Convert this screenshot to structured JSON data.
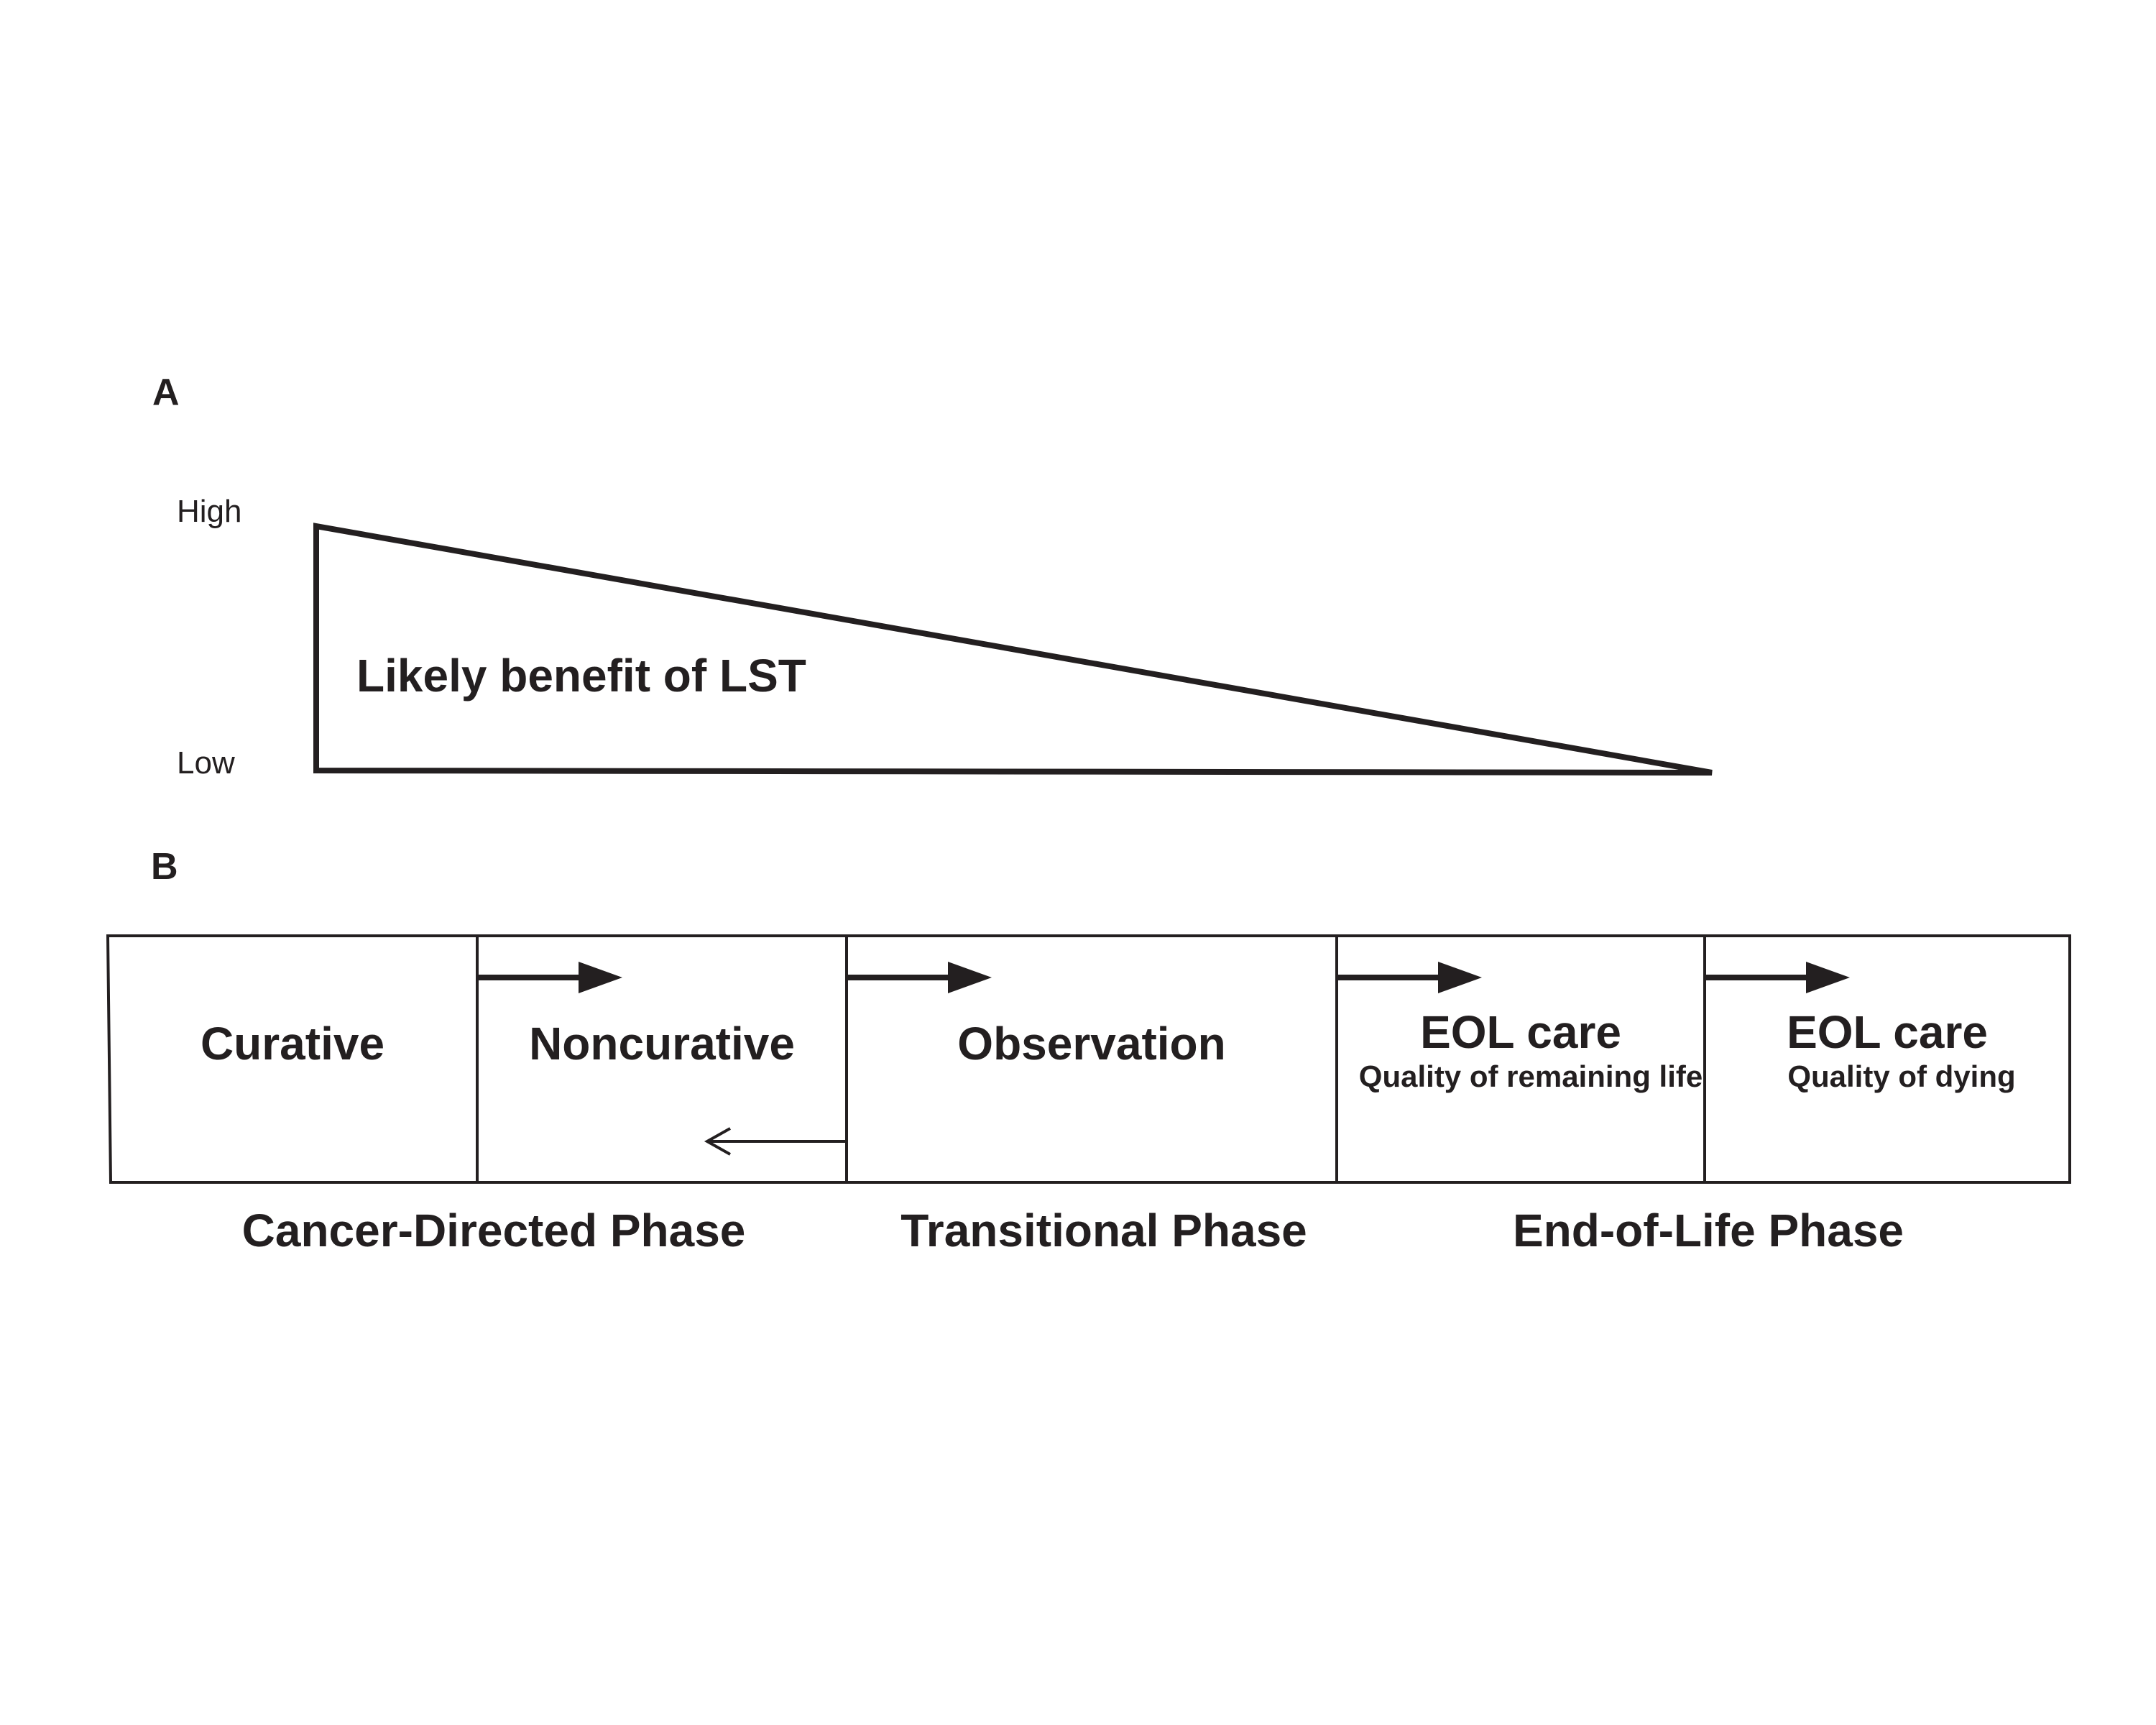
{
  "panel_a": {
    "label": "A",
    "y_high": "High",
    "y_low": "Low",
    "wedge_label": "Likely benefit of LST"
  },
  "panel_b": {
    "label": "B",
    "stages": [
      {
        "title": "Curative",
        "subtitle": ""
      },
      {
        "title": "Noncurative",
        "subtitle": ""
      },
      {
        "title": "Observation",
        "subtitle": ""
      },
      {
        "title": "EOL care",
        "subtitle": "Quality of remaining life"
      },
      {
        "title": "EOL care",
        "subtitle": "Quality of dying"
      }
    ],
    "phases": [
      "Cancer-Directed Phase",
      "Transitional Phase",
      "End-of-Life Phase"
    ]
  },
  "colors": {
    "ink": "#231f20",
    "background": "#ffffff"
  }
}
